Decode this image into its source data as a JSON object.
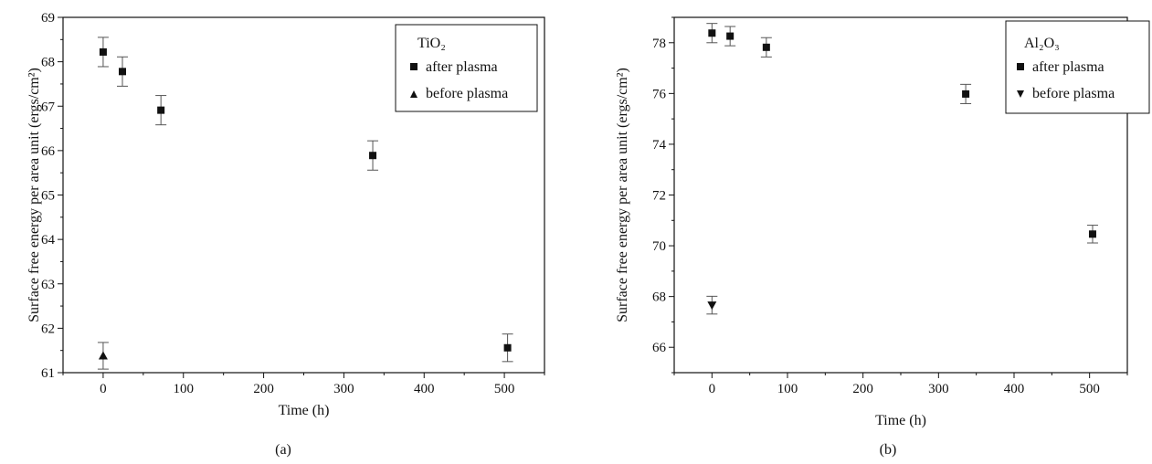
{
  "chart_data": [
    {
      "type": "scatter",
      "panel_label": "(a)",
      "xlabel": "Time (h)",
      "ylabel": "Surface free energy per area unit (ergs/cm²)",
      "xlim": [
        -50,
        550
      ],
      "ylim": [
        61,
        69
      ],
      "xticks": [
        0,
        100,
        200,
        300,
        400,
        500
      ],
      "yticks": [
        61,
        62,
        63,
        64,
        65,
        66,
        67,
        68,
        69
      ],
      "legend": {
        "title": "TiO₂",
        "position": "top-right"
      },
      "series": [
        {
          "name": "after plasma",
          "marker": "square",
          "points": [
            {
              "x": 0,
              "y": 68.22,
              "err": 0.33
            },
            {
              "x": 24,
              "y": 67.78,
              "err": 0.33
            },
            {
              "x": 72,
              "y": 66.91,
              "err": 0.33
            },
            {
              "x": 336,
              "y": 65.89,
              "err": 0.33
            },
            {
              "x": 504,
              "y": 61.56,
              "err": 0.31
            }
          ]
        },
        {
          "name": "before plasma",
          "marker": "triangle-up",
          "points": [
            {
              "x": 0,
              "y": 61.38,
              "err": 0.3
            }
          ]
        }
      ]
    },
    {
      "type": "scatter",
      "panel_label": "(b)",
      "xlabel": "Time (h)",
      "ylabel": "Surface free energy per area unit (ergs/cm²)",
      "xlim": [
        -50,
        550
      ],
      "ylim": [
        65,
        79
      ],
      "xticks": [
        0,
        100,
        200,
        300,
        400,
        500
      ],
      "yticks": [
        66,
        68,
        70,
        72,
        74,
        76,
        78
      ],
      "legend": {
        "title": "Al₂O₃",
        "position": "top-right"
      },
      "series": [
        {
          "name": "after plasma",
          "marker": "square",
          "points": [
            {
              "x": 0,
              "y": 78.38,
              "err": 0.38
            },
            {
              "x": 24,
              "y": 78.26,
              "err": 0.38
            },
            {
              "x": 72,
              "y": 77.82,
              "err": 0.38
            },
            {
              "x": 336,
              "y": 75.98,
              "err": 0.38
            },
            {
              "x": 504,
              "y": 70.46,
              "err": 0.35
            }
          ]
        },
        {
          "name": "before plasma",
          "marker": "triangle-down",
          "points": [
            {
              "x": 0,
              "y": 67.66,
              "err": 0.35
            }
          ]
        }
      ]
    }
  ]
}
